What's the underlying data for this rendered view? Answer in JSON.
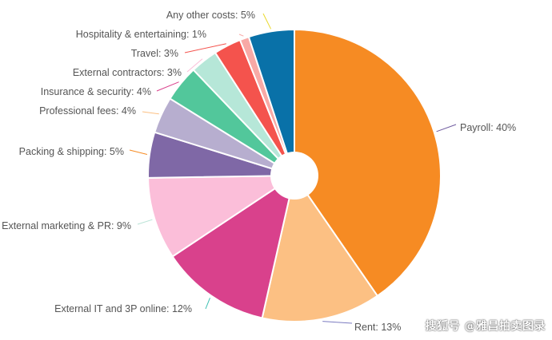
{
  "chart_data": {
    "type": "pie",
    "donut_hole": true,
    "slices": [
      {
        "label": "Payroll: 40%",
        "value": 40,
        "color": "#F68B23",
        "leader_color": "#6E5A9E"
      },
      {
        "label": "Rent: 13%",
        "value": 13,
        "color": "#FCC083",
        "leader_color": "#7B7BC0"
      },
      {
        "label": "External IT and 3P online: 12%",
        "value": 12,
        "color": "#D9418C",
        "leader_color": "#3DBFB1"
      },
      {
        "label": "External marketing & PR: 9%",
        "value": 9,
        "color": "#FBBED9",
        "leader_color": "#B9E3D6"
      },
      {
        "label": "Packing & shipping: 5%",
        "value": 5,
        "color": "#7F68A6",
        "leader_color": "#F68B23"
      },
      {
        "label": "Professional fees: 4%",
        "value": 4,
        "color": "#B7AECF",
        "leader_color": "#FCC083"
      },
      {
        "label": "Insurance & security: 4%",
        "value": 4,
        "color": "#52C79B",
        "leader_color": "#D9418C"
      },
      {
        "label": "External contractors: 3%",
        "value": 3,
        "color": "#B6E7D8",
        "leader_color": "#FBBED9"
      },
      {
        "label": "Travel: 3%",
        "value": 3,
        "color": "#F4534D",
        "leader_color": "#F4534D"
      },
      {
        "label": "Hospitality & entertaining: 1%",
        "value": 1,
        "color": "#F8A9A6",
        "leader_color": "#F8A9A6"
      },
      {
        "label": "Any other costs: 5%",
        "value": 5,
        "color": "#0971A8",
        "leader_color": "#E9D82A"
      }
    ]
  },
  "watermark": "搜狐号 @雅昌拍卖图录"
}
